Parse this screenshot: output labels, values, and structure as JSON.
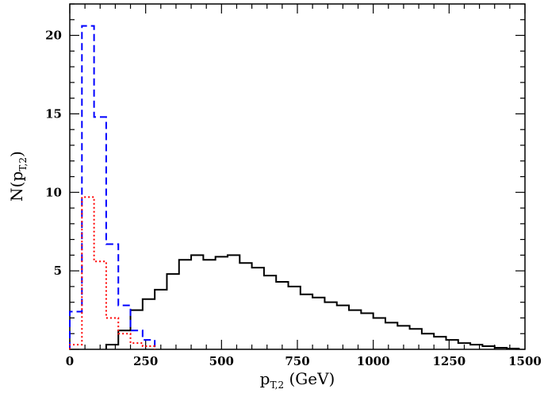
{
  "chart_data": {
    "type": "line",
    "step": true,
    "xlabel": {
      "main": "p",
      "sub": "T,2",
      "unit": " (GeV)"
    },
    "ylabel": {
      "main": "N(p",
      "sub": "T,2",
      "close": ")"
    },
    "xlim": [
      0,
      1500
    ],
    "ylim": [
      0,
      22
    ],
    "xticks": [
      0,
      250,
      500,
      750,
      1000,
      1250,
      1500
    ],
    "yticks": [
      5,
      10,
      15,
      20
    ],
    "bin_width": 40,
    "series": [
      {
        "style": "solid",
        "color": "#000000",
        "edges": [
          120,
          160,
          200,
          240,
          280,
          320,
          360,
          400,
          440,
          480,
          520,
          560,
          600,
          640,
          680,
          720,
          760,
          800,
          840,
          880,
          920,
          960,
          1000,
          1040,
          1080,
          1120,
          1160,
          1200,
          1240,
          1280,
          1320,
          1360,
          1400,
          1440,
          1480
        ],
        "values": [
          0.3,
          1.2,
          2.5,
          3.2,
          3.8,
          4.8,
          5.7,
          6.0,
          5.7,
          5.9,
          6.0,
          5.5,
          5.2,
          4.7,
          4.3,
          4.0,
          3.5,
          3.3,
          3.0,
          2.8,
          2.5,
          2.3,
          2.0,
          1.7,
          1.5,
          1.3,
          1.0,
          0.8,
          0.6,
          0.4,
          0.3,
          0.2,
          0.1,
          0.05
        ]
      },
      {
        "style": "dashed",
        "color": "#0000ff",
        "edges": [
          0,
          40,
          80,
          120,
          160,
          200,
          240,
          280
        ],
        "values": [
          2.4,
          20.6,
          14.8,
          6.7,
          2.8,
          1.2,
          0.6
        ]
      },
      {
        "style": "dotted",
        "color": "#ff0000",
        "edges": [
          0,
          40,
          80,
          120,
          160,
          200,
          240,
          280
        ],
        "values": [
          0.3,
          9.7,
          5.6,
          2.0,
          1.0,
          0.4,
          0.2
        ]
      }
    ]
  }
}
